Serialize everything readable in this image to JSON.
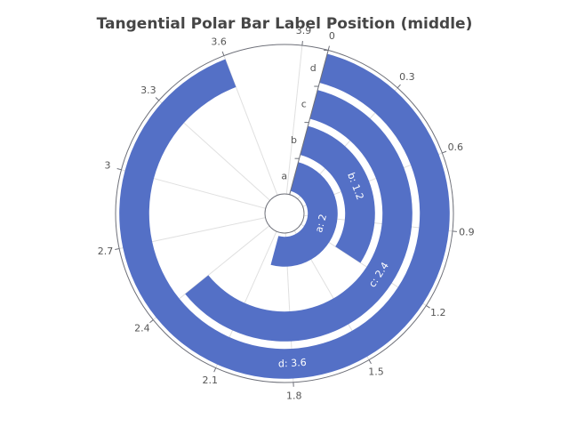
{
  "chart_data": {
    "type": "polar-bar",
    "title": "Tangential Polar Bar Label Position (middle)",
    "categories": [
      "a",
      "b",
      "c",
      "d"
    ],
    "values": [
      2,
      1.2,
      2.4,
      3.6
    ],
    "value_labels": [
      "a: 2",
      "b: 1.2",
      "c: 2.4",
      "d: 3.6"
    ],
    "color": "#5470c6",
    "alim": [
      0,
      4
    ],
    "aticks": [
      0,
      0.3,
      0.6,
      0.9,
      1.2,
      1.5,
      1.8,
      2.1,
      2.4,
      2.7,
      3,
      3.3,
      3.6,
      3.9
    ],
    "grid": true
  }
}
